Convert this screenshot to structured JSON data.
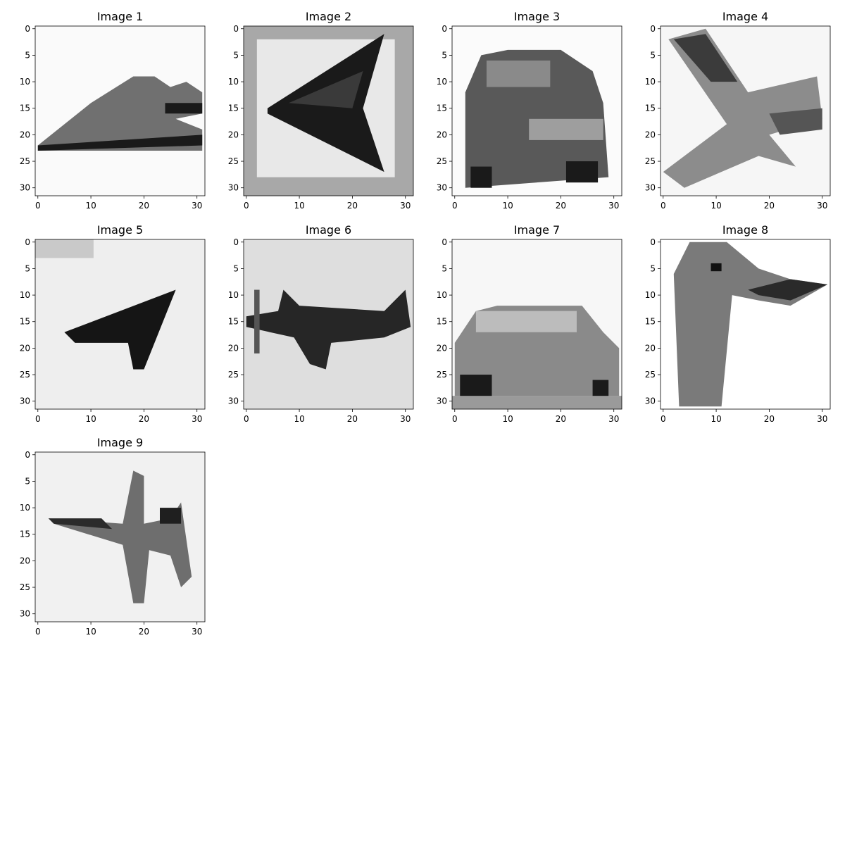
{
  "chart_data": {
    "type": "heatmap",
    "description_of_style": "grayscale image grid, gray_r colormap",
    "colormap": "gray_r",
    "grid": false,
    "panels": [
      {
        "title": "Image 1",
        "content_hint": "airplane",
        "xticks": [
          0,
          10,
          20,
          30
        ],
        "yticks": [
          0,
          5,
          10,
          15,
          20,
          25,
          30
        ],
        "xlim": [
          -0.5,
          31.5
        ],
        "ylim": [
          31.5,
          -0.5
        ]
      },
      {
        "title": "Image 2",
        "content_hint": "airplane",
        "xticks": [
          0,
          10,
          20,
          30
        ],
        "yticks": [
          0,
          5,
          10,
          15,
          20,
          25,
          30
        ],
        "xlim": [
          -0.5,
          31.5
        ],
        "ylim": [
          31.5,
          -0.5
        ]
      },
      {
        "title": "Image 3",
        "content_hint": "car",
        "xticks": [
          0,
          10,
          20,
          30
        ],
        "yticks": [
          0,
          5,
          10,
          15,
          20,
          25,
          30
        ],
        "xlim": [
          -0.5,
          31.5
        ],
        "ylim": [
          31.5,
          -0.5
        ]
      },
      {
        "title": "Image 4",
        "content_hint": "airplane",
        "xticks": [
          0,
          10,
          20,
          30
        ],
        "yticks": [
          0,
          5,
          10,
          15,
          20,
          25,
          30
        ],
        "xlim": [
          -0.5,
          31.5
        ],
        "ylim": [
          31.5,
          -0.5
        ]
      },
      {
        "title": "Image 5",
        "content_hint": "airplane",
        "xticks": [
          0,
          10,
          20,
          30
        ],
        "yticks": [
          0,
          5,
          10,
          15,
          20,
          25,
          30
        ],
        "xlim": [
          -0.5,
          31.5
        ],
        "ylim": [
          31.5,
          -0.5
        ]
      },
      {
        "title": "Image 6",
        "content_hint": "airplane",
        "xticks": [
          0,
          10,
          20,
          30
        ],
        "yticks": [
          0,
          5,
          10,
          15,
          20,
          25,
          30
        ],
        "xlim": [
          -0.5,
          31.5
        ],
        "ylim": [
          31.5,
          -0.5
        ]
      },
      {
        "title": "Image 7",
        "content_hint": "car",
        "xticks": [
          0,
          10,
          20,
          30
        ],
        "yticks": [
          0,
          5,
          10,
          15,
          20,
          25,
          30
        ],
        "xlim": [
          -0.5,
          31.5
        ],
        "ylim": [
          31.5,
          -0.5
        ]
      },
      {
        "title": "Image 8",
        "content_hint": "ostrich",
        "xticks": [
          0,
          10,
          20,
          30
        ],
        "yticks": [
          0,
          5,
          10,
          15,
          20,
          25,
          30
        ],
        "xlim": [
          -0.5,
          31.5
        ],
        "ylim": [
          31.5,
          -0.5
        ]
      },
      {
        "title": "Image 9",
        "content_hint": "airplane",
        "xticks": [
          0,
          10,
          20,
          30
        ],
        "yticks": [
          0,
          5,
          10,
          15,
          20,
          25,
          30
        ],
        "xlim": [
          -0.5,
          31.5
        ],
        "ylim": [
          31.5,
          -0.5
        ]
      }
    ]
  },
  "colors": {
    "background": "#ffffff",
    "axis": "#000000",
    "dark": "#1a1a1a",
    "mid": "#707070",
    "light": "#bdbdbd",
    "paper": "#f4f4f4"
  }
}
